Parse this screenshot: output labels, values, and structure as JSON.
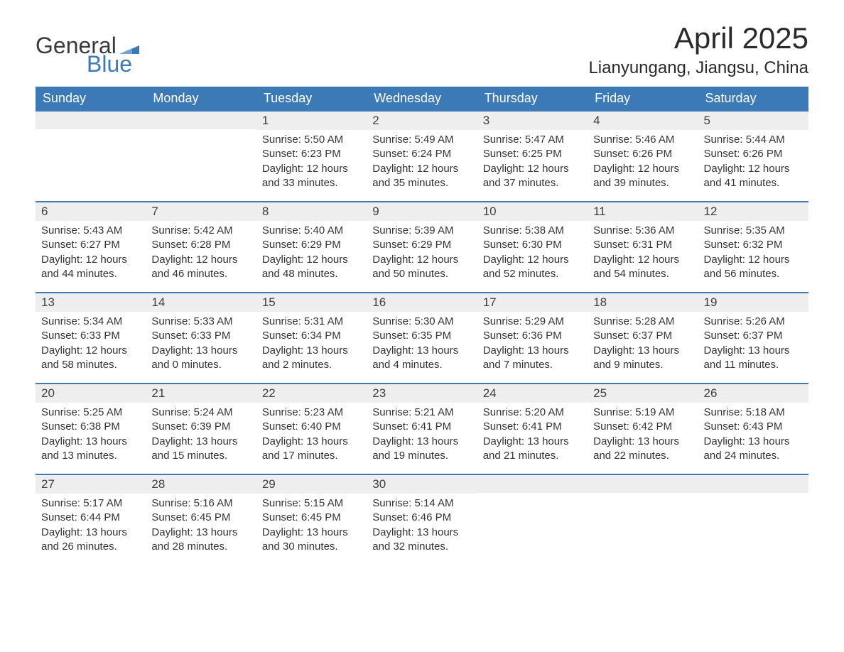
{
  "brand": {
    "word1": "General",
    "word2": "Blue",
    "flag_color": "#3b79b7"
  },
  "title": "April 2025",
  "location": "Lianyungang, Jiangsu, China",
  "colors": {
    "header_bg": "#3b79b7",
    "header_text": "#ffffff",
    "daynum_bg": "#eeeeee",
    "row_border": "#3b79b7",
    "body_text": "#333333",
    "title_text": "#2a2a2a"
  },
  "weekdays": [
    "Sunday",
    "Monday",
    "Tuesday",
    "Wednesday",
    "Thursday",
    "Friday",
    "Saturday"
  ],
  "weeks": [
    [
      {
        "day": ""
      },
      {
        "day": ""
      },
      {
        "day": "1",
        "sunrise": "Sunrise: 5:50 AM",
        "sunset": "Sunset: 6:23 PM",
        "dl1": "Daylight: 12 hours",
        "dl2": "and 33 minutes."
      },
      {
        "day": "2",
        "sunrise": "Sunrise: 5:49 AM",
        "sunset": "Sunset: 6:24 PM",
        "dl1": "Daylight: 12 hours",
        "dl2": "and 35 minutes."
      },
      {
        "day": "3",
        "sunrise": "Sunrise: 5:47 AM",
        "sunset": "Sunset: 6:25 PM",
        "dl1": "Daylight: 12 hours",
        "dl2": "and 37 minutes."
      },
      {
        "day": "4",
        "sunrise": "Sunrise: 5:46 AM",
        "sunset": "Sunset: 6:26 PM",
        "dl1": "Daylight: 12 hours",
        "dl2": "and 39 minutes."
      },
      {
        "day": "5",
        "sunrise": "Sunrise: 5:44 AM",
        "sunset": "Sunset: 6:26 PM",
        "dl1": "Daylight: 12 hours",
        "dl2": "and 41 minutes."
      }
    ],
    [
      {
        "day": "6",
        "sunrise": "Sunrise: 5:43 AM",
        "sunset": "Sunset: 6:27 PM",
        "dl1": "Daylight: 12 hours",
        "dl2": "and 44 minutes."
      },
      {
        "day": "7",
        "sunrise": "Sunrise: 5:42 AM",
        "sunset": "Sunset: 6:28 PM",
        "dl1": "Daylight: 12 hours",
        "dl2": "and 46 minutes."
      },
      {
        "day": "8",
        "sunrise": "Sunrise: 5:40 AM",
        "sunset": "Sunset: 6:29 PM",
        "dl1": "Daylight: 12 hours",
        "dl2": "and 48 minutes."
      },
      {
        "day": "9",
        "sunrise": "Sunrise: 5:39 AM",
        "sunset": "Sunset: 6:29 PM",
        "dl1": "Daylight: 12 hours",
        "dl2": "and 50 minutes."
      },
      {
        "day": "10",
        "sunrise": "Sunrise: 5:38 AM",
        "sunset": "Sunset: 6:30 PM",
        "dl1": "Daylight: 12 hours",
        "dl2": "and 52 minutes."
      },
      {
        "day": "11",
        "sunrise": "Sunrise: 5:36 AM",
        "sunset": "Sunset: 6:31 PM",
        "dl1": "Daylight: 12 hours",
        "dl2": "and 54 minutes."
      },
      {
        "day": "12",
        "sunrise": "Sunrise: 5:35 AM",
        "sunset": "Sunset: 6:32 PM",
        "dl1": "Daylight: 12 hours",
        "dl2": "and 56 minutes."
      }
    ],
    [
      {
        "day": "13",
        "sunrise": "Sunrise: 5:34 AM",
        "sunset": "Sunset: 6:33 PM",
        "dl1": "Daylight: 12 hours",
        "dl2": "and 58 minutes."
      },
      {
        "day": "14",
        "sunrise": "Sunrise: 5:33 AM",
        "sunset": "Sunset: 6:33 PM",
        "dl1": "Daylight: 13 hours",
        "dl2": "and 0 minutes."
      },
      {
        "day": "15",
        "sunrise": "Sunrise: 5:31 AM",
        "sunset": "Sunset: 6:34 PM",
        "dl1": "Daylight: 13 hours",
        "dl2": "and 2 minutes."
      },
      {
        "day": "16",
        "sunrise": "Sunrise: 5:30 AM",
        "sunset": "Sunset: 6:35 PM",
        "dl1": "Daylight: 13 hours",
        "dl2": "and 4 minutes."
      },
      {
        "day": "17",
        "sunrise": "Sunrise: 5:29 AM",
        "sunset": "Sunset: 6:36 PM",
        "dl1": "Daylight: 13 hours",
        "dl2": "and 7 minutes."
      },
      {
        "day": "18",
        "sunrise": "Sunrise: 5:28 AM",
        "sunset": "Sunset: 6:37 PM",
        "dl1": "Daylight: 13 hours",
        "dl2": "and 9 minutes."
      },
      {
        "day": "19",
        "sunrise": "Sunrise: 5:26 AM",
        "sunset": "Sunset: 6:37 PM",
        "dl1": "Daylight: 13 hours",
        "dl2": "and 11 minutes."
      }
    ],
    [
      {
        "day": "20",
        "sunrise": "Sunrise: 5:25 AM",
        "sunset": "Sunset: 6:38 PM",
        "dl1": "Daylight: 13 hours",
        "dl2": "and 13 minutes."
      },
      {
        "day": "21",
        "sunrise": "Sunrise: 5:24 AM",
        "sunset": "Sunset: 6:39 PM",
        "dl1": "Daylight: 13 hours",
        "dl2": "and 15 minutes."
      },
      {
        "day": "22",
        "sunrise": "Sunrise: 5:23 AM",
        "sunset": "Sunset: 6:40 PM",
        "dl1": "Daylight: 13 hours",
        "dl2": "and 17 minutes."
      },
      {
        "day": "23",
        "sunrise": "Sunrise: 5:21 AM",
        "sunset": "Sunset: 6:41 PM",
        "dl1": "Daylight: 13 hours",
        "dl2": "and 19 minutes."
      },
      {
        "day": "24",
        "sunrise": "Sunrise: 5:20 AM",
        "sunset": "Sunset: 6:41 PM",
        "dl1": "Daylight: 13 hours",
        "dl2": "and 21 minutes."
      },
      {
        "day": "25",
        "sunrise": "Sunrise: 5:19 AM",
        "sunset": "Sunset: 6:42 PM",
        "dl1": "Daylight: 13 hours",
        "dl2": "and 22 minutes."
      },
      {
        "day": "26",
        "sunrise": "Sunrise: 5:18 AM",
        "sunset": "Sunset: 6:43 PM",
        "dl1": "Daylight: 13 hours",
        "dl2": "and 24 minutes."
      }
    ],
    [
      {
        "day": "27",
        "sunrise": "Sunrise: 5:17 AM",
        "sunset": "Sunset: 6:44 PM",
        "dl1": "Daylight: 13 hours",
        "dl2": "and 26 minutes."
      },
      {
        "day": "28",
        "sunrise": "Sunrise: 5:16 AM",
        "sunset": "Sunset: 6:45 PM",
        "dl1": "Daylight: 13 hours",
        "dl2": "and 28 minutes."
      },
      {
        "day": "29",
        "sunrise": "Sunrise: 5:15 AM",
        "sunset": "Sunset: 6:45 PM",
        "dl1": "Daylight: 13 hours",
        "dl2": "and 30 minutes."
      },
      {
        "day": "30",
        "sunrise": "Sunrise: 5:14 AM",
        "sunset": "Sunset: 6:46 PM",
        "dl1": "Daylight: 13 hours",
        "dl2": "and 32 minutes."
      },
      {
        "day": ""
      },
      {
        "day": ""
      },
      {
        "day": ""
      }
    ]
  ]
}
